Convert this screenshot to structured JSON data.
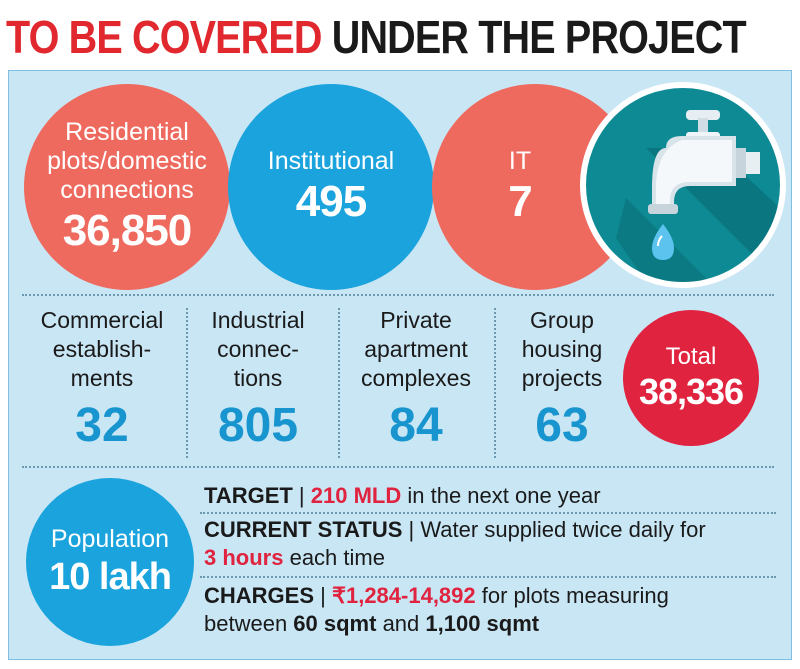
{
  "header": {
    "title_red": "TO BE COVERED",
    "title_dark": " UNDER THE PROJECT"
  },
  "top_circles": {
    "residential": {
      "label_1": "Residential",
      "label_2": "plots/domestic",
      "label_3": "connections",
      "value": "36,850"
    },
    "institutional": {
      "label": "Institutional",
      "value": "495"
    },
    "it": {
      "label": "IT",
      "value": "7"
    }
  },
  "stats": [
    {
      "label_1": "Commercial",
      "label_2": "establish-",
      "label_3": "ments",
      "value": "32"
    },
    {
      "label_1": "Industrial",
      "label_2": "connec-",
      "label_3": "tions",
      "value": "805"
    },
    {
      "label_1": "Private",
      "label_2": "apartment",
      "label_3": "complexes",
      "value": "84"
    },
    {
      "label_1": "Group",
      "label_2": "housing",
      "label_3": "projects",
      "value": "63"
    }
  ],
  "total": {
    "label": "Total",
    "value": "38,336"
  },
  "population": {
    "label": "Population",
    "value": "10 lakh"
  },
  "info": {
    "target_key": "TARGET",
    "target_sep": " | ",
    "target_value": "210 MLD",
    "target_rest": " in the next one year",
    "status_key": "CURRENT STATUS",
    "status_sep": " | ",
    "status_text": "Water supplied twice daily for",
    "status_value": "3 hours",
    "status_rest": " each time",
    "charges_key": "CHARGES",
    "charges_sep": " | ",
    "charges_value": "₹1,284-14,892",
    "charges_text": " for plots measuring",
    "charges_line2_a": "between ",
    "charges_min": "60 sqmt",
    "charges_and": " and ",
    "charges_max": "1,100 sqmt"
  },
  "colors": {
    "accent_red": "#e0282e",
    "coral": "#ef6a5e",
    "blue": "#1aa3dc",
    "teal": "#0d8a93",
    "panel": "#c9e6f5"
  },
  "icons": {
    "tap": "water-tap-icon"
  }
}
